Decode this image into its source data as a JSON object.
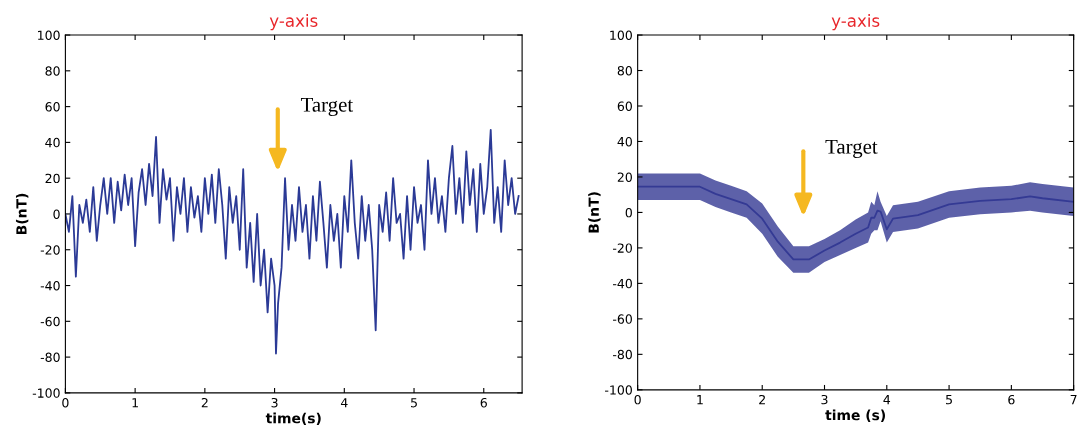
{
  "chart_data": [
    {
      "type": "line",
      "title": "y-axis",
      "xlabel": "time(s)",
      "ylabel": "B(nT)",
      "xlim": [
        0,
        6.55
      ],
      "xticks": [
        0,
        1,
        2,
        3,
        4,
        5,
        6
      ],
      "ylim": [
        -100,
        100
      ],
      "yticks": [
        -100,
        -80,
        -60,
        -40,
        -20,
        0,
        20,
        40,
        60,
        80,
        100
      ],
      "annotations": [
        "Target"
      ],
      "series": [
        {
          "color": "#2b3a96",
          "x": [
            0,
            0.05,
            0.1,
            0.15,
            0.2,
            0.25,
            0.3,
            0.35,
            0.4,
            0.45,
            0.5,
            0.55,
            0.6,
            0.65,
            0.7,
            0.75,
            0.8,
            0.85,
            0.9,
            0.95,
            1.0,
            1.05,
            1.1,
            1.15,
            1.2,
            1.25,
            1.3,
            1.35,
            1.4,
            1.45,
            1.5,
            1.55,
            1.6,
            1.65,
            1.7,
            1.75,
            1.8,
            1.85,
            1.9,
            1.95,
            2.0,
            2.05,
            2.1,
            2.15,
            2.2,
            2.25,
            2.3,
            2.35,
            2.4,
            2.45,
            2.5,
            2.55,
            2.6,
            2.65,
            2.7,
            2.75,
            2.8,
            2.85,
            2.9,
            2.95,
            3.0,
            3.02,
            3.05,
            3.1,
            3.15,
            3.2,
            3.25,
            3.3,
            3.35,
            3.4,
            3.45,
            3.5,
            3.55,
            3.6,
            3.65,
            3.7,
            3.75,
            3.8,
            3.85,
            3.9,
            3.95,
            4.0,
            4.05,
            4.1,
            4.15,
            4.2,
            4.25,
            4.3,
            4.35,
            4.4,
            4.45,
            4.5,
            4.55,
            4.6,
            4.65,
            4.7,
            4.75,
            4.8,
            4.85,
            4.9,
            4.95,
            5.0,
            5.05,
            5.1,
            5.15,
            5.2,
            5.25,
            5.3,
            5.35,
            5.4,
            5.45,
            5.5,
            5.55,
            5.6,
            5.65,
            5.7,
            5.75,
            5.8,
            5.85,
            5.9,
            5.95,
            6.0,
            6.05,
            6.1,
            6.15,
            6.2,
            6.25,
            6.3,
            6.35,
            6.4,
            6.45,
            6.5
          ],
          "values": [
            0,
            -10,
            10,
            -35,
            5,
            -5,
            8,
            -10,
            15,
            -15,
            5,
            20,
            0,
            20,
            -5,
            18,
            2,
            22,
            5,
            20,
            -18,
            12,
            25,
            5,
            28,
            10,
            43,
            -5,
            25,
            8,
            20,
            -15,
            15,
            0,
            20,
            -10,
            15,
            -2,
            10,
            -10,
            20,
            0,
            22,
            -5,
            25,
            5,
            -25,
            15,
            -5,
            10,
            -20,
            25,
            -30,
            -5,
            -38,
            0,
            -40,
            -20,
            -55,
            -25,
            -40,
            -78,
            -50,
            -30,
            20,
            -20,
            5,
            -15,
            15,
            -10,
            5,
            -25,
            10,
            -15,
            18,
            -5,
            -30,
            5,
            -15,
            0,
            -30,
            10,
            -10,
            30,
            -5,
            -25,
            10,
            -15,
            5,
            -20,
            -65,
            5,
            -10,
            12,
            -15,
            20,
            -5,
            0,
            -25,
            10,
            -20,
            15,
            -5,
            5,
            -20,
            30,
            0,
            20,
            -5,
            10,
            -10,
            20,
            38,
            0,
            20,
            -5,
            35,
            5,
            25,
            -10,
            28,
            0,
            15,
            47,
            -5,
            15,
            -10,
            30,
            5,
            20,
            0,
            10
          ]
        }
      ]
    },
    {
      "type": "line",
      "title": "y-axis",
      "xlabel": "time (s)",
      "ylabel": "B(nT)",
      "xlim": [
        0,
        7
      ],
      "xticks": [
        0,
        1,
        2,
        3,
        4,
        5,
        6,
        7
      ],
      "ylim": [
        -100,
        100
      ],
      "yticks": [
        -100,
        -80,
        -60,
        -40,
        -20,
        0,
        20,
        40,
        60,
        80,
        100
      ],
      "annotations": [
        "Target"
      ],
      "series": [
        {
          "color": "#343a94",
          "x": [
            0,
            0.5,
            1.0,
            1.25,
            1.5,
            1.75,
            2.0,
            2.25,
            2.5,
            2.75,
            3.0,
            3.25,
            3.5,
            3.7,
            3.75,
            3.8,
            3.85,
            3.9,
            4.0,
            4.1,
            4.5,
            5.0,
            5.5,
            6.0,
            6.3,
            6.5,
            7.0
          ],
          "values": [
            14.5,
            14.5,
            14.5,
            10.5,
            7.5,
            4.5,
            -3.5,
            -16.5,
            -26.5,
            -26.5,
            -21.5,
            -17,
            -12,
            -8.5,
            -3,
            -3,
            1,
            0.5,
            -9.5,
            -3.5,
            -1.5,
            4.5,
            6.5,
            7.5,
            9,
            8,
            6
          ],
          "lower": [
            7,
            7,
            7,
            3,
            0,
            -3,
            -12,
            -25,
            -34,
            -34,
            -28,
            -24,
            -20,
            -17,
            -12,
            -10,
            -10,
            -5,
            -17,
            -11,
            -9,
            -3,
            -1,
            0,
            1,
            0,
            -2
          ],
          "upper": [
            22,
            22,
            22,
            18,
            15,
            12,
            5,
            -8,
            -19,
            -19,
            -15,
            -10,
            -4,
            0,
            6,
            4,
            12,
            6,
            -2,
            4,
            6,
            12,
            14,
            15,
            17,
            16,
            14
          ]
        }
      ]
    }
  ]
}
